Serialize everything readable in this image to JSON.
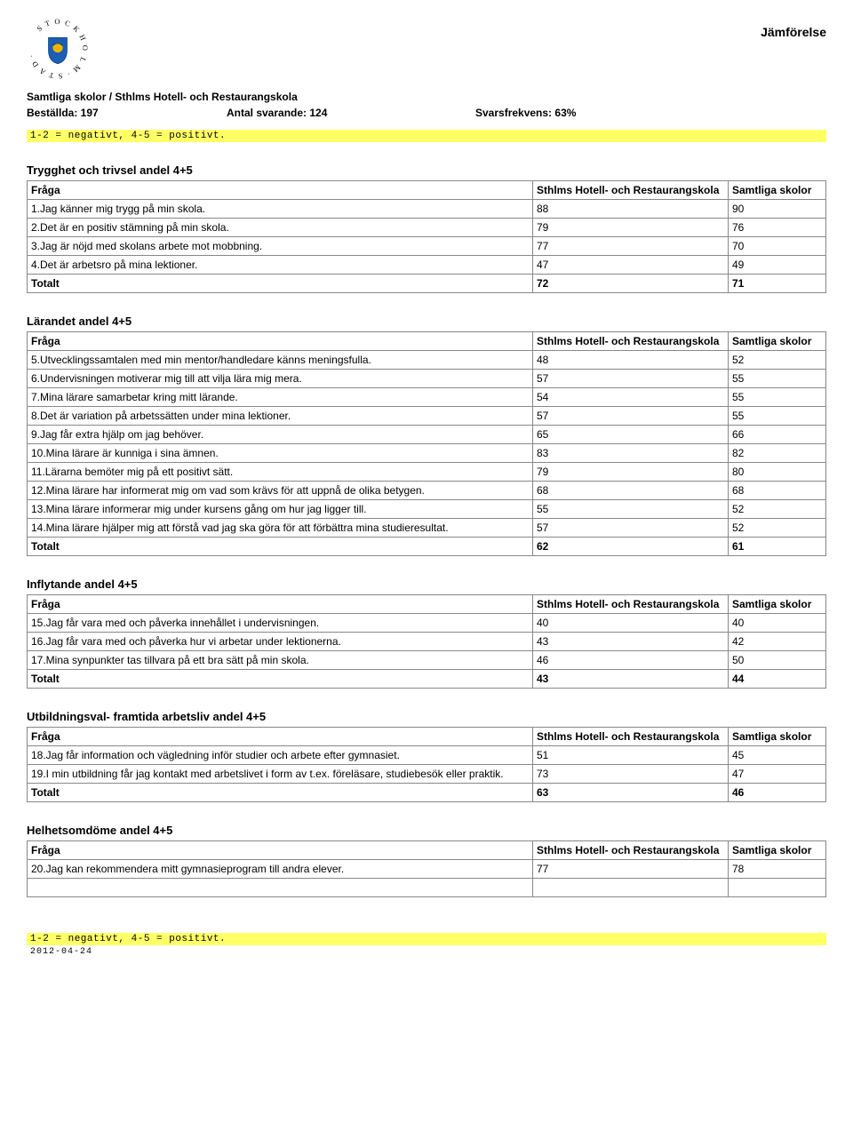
{
  "page": {
    "title": "Jämförelse"
  },
  "meta": {
    "school_line": "Samtliga skolor / Sthlms Hotell- och Restaurangskola",
    "ordered_label": "Beställda: 197",
    "responses_label": "Antal svarande: 124",
    "freq_label": "Svarsfrekvens: 63%"
  },
  "legend_text": "1-2 = negativt, 4-5 = positivt.",
  "headers": {
    "question": "Fråga",
    "col1": "Sthlms Hotell- och Restaurangskola",
    "col2": "Samtliga skolor",
    "total": "Totalt"
  },
  "sections": [
    {
      "title": "Trygghet och trivsel andel 4+5",
      "rows": [
        {
          "q": "1.Jag känner mig trygg på min skola.",
          "a": "88",
          "b": "90"
        },
        {
          "q": "2.Det är en positiv stämning på min skola.",
          "a": "79",
          "b": "76"
        },
        {
          "q": "3.Jag är nöjd med skolans arbete mot mobbning.",
          "a": "77",
          "b": "70"
        },
        {
          "q": "4.Det är arbetsro på mina lektioner.",
          "a": "47",
          "b": "49"
        }
      ],
      "total": {
        "a": "72",
        "b": "71"
      }
    },
    {
      "title": "Lärandet andel 4+5",
      "rows": [
        {
          "q": "5.Utvecklingssamtalen med min mentor/handledare känns meningsfulla.",
          "a": "48",
          "b": "52"
        },
        {
          "q": "6.Undervisningen motiverar mig till att vilja lära mig mera.",
          "a": "57",
          "b": "55"
        },
        {
          "q": "7.Mina lärare samarbetar kring mitt lärande.",
          "a": "54",
          "b": "55"
        },
        {
          "q": "8.Det är variation på arbetssätten under mina lektioner.",
          "a": "57",
          "b": "55"
        },
        {
          "q": "9.Jag får extra hjälp om jag behöver.",
          "a": "65",
          "b": "66"
        },
        {
          "q": "10.Mina lärare är kunniga i sina ämnen.",
          "a": "83",
          "b": "82"
        },
        {
          "q": "11.Lärarna bemöter mig på ett positivt sätt.",
          "a": "79",
          "b": "80"
        },
        {
          "q": "12.Mina lärare har informerat mig om vad som krävs för att uppnå de olika betygen.",
          "a": "68",
          "b": "68"
        },
        {
          "q": "13.Mina lärare informerar mig under kursens gång om hur jag ligger till.",
          "a": "55",
          "b": "52"
        },
        {
          "q": "14.Mina lärare hjälper mig att förstå vad jag ska göra för att förbättra mina studieresultat.",
          "a": "57",
          "b": "52"
        }
      ],
      "total": {
        "a": "62",
        "b": "61"
      }
    },
    {
      "title": "Inflytande andel 4+5",
      "rows": [
        {
          "q": "15.Jag får vara med och påverka innehållet i undervisningen.",
          "a": "40",
          "b": "40"
        },
        {
          "q": "16.Jag får vara med och påverka hur vi arbetar under lektionerna.",
          "a": "43",
          "b": "42"
        },
        {
          "q": "17.Mina synpunkter tas tillvara på ett bra sätt på min skola.",
          "a": "46",
          "b": "50"
        }
      ],
      "total": {
        "a": "43",
        "b": "44"
      }
    },
    {
      "title": "Utbildningsval- framtida arbetsliv andel 4+5",
      "rows": [
        {
          "q": "18.Jag får information och vägledning inför studier och arbete efter gymnasiet.",
          "a": "51",
          "b": "45"
        },
        {
          "q": "19.I min utbildning får jag kontakt med arbetslivet i form av t.ex. föreläsare, studiebesök eller praktik.",
          "a": "73",
          "b": "47"
        }
      ],
      "total": {
        "a": "63",
        "b": "46"
      }
    },
    {
      "title": "Helhetsomdöme andel 4+5",
      "rows": [
        {
          "q": "20.Jag kan rekommendera mitt gymnasieprogram till andra elever.",
          "a": "77",
          "b": "78"
        }
      ],
      "empty_trailing_row": true
    }
  ],
  "footer": {
    "date": "2012-04-24"
  },
  "colors": {
    "highlight_bg": "#ffff66",
    "border": "#888888",
    "shield_blue": "#1a5eb8",
    "shield_gold": "#f2b500"
  }
}
